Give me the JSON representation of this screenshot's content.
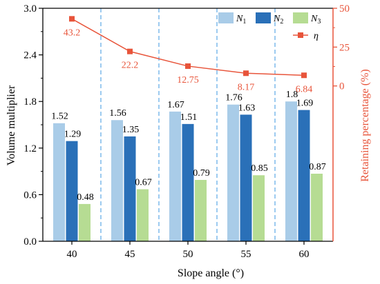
{
  "chart_data": {
    "type": "bar",
    "categories": [
      "40",
      "45",
      "50",
      "55",
      "60"
    ],
    "xlabel": "Slope angle (°)",
    "ylabel": "Volume multiplier",
    "ylim": [
      0,
      3.0
    ],
    "yticks": [
      "0.0",
      "0.6",
      "1.2",
      "1.8",
      "2.4",
      "3.0"
    ],
    "y2label": "Retaining percentage (%)",
    "y2lim": [
      -100,
      50
    ],
    "y2ticks": [
      "0",
      "25",
      "50"
    ],
    "y2_ticks_values": [
      0,
      25,
      50
    ],
    "series": [
      {
        "name": "N",
        "sub": "1",
        "color": "#a9cce8",
        "values": [
          1.52,
          1.56,
          1.67,
          1.76,
          1.8
        ],
        "labels": [
          "1.52",
          "1.56",
          "1.67",
          "1.76",
          "1.8"
        ]
      },
      {
        "name": "N",
        "sub": "2",
        "color": "#2a70b8",
        "values": [
          1.29,
          1.35,
          1.51,
          1.63,
          1.69
        ],
        "labels": [
          "1.29",
          "1.35",
          "1.51",
          "1.63",
          "1.69"
        ]
      },
      {
        "name": "N",
        "sub": "3",
        "color": "#b6dc93",
        "values": [
          0.48,
          0.67,
          0.79,
          0.85,
          0.87
        ],
        "labels": [
          "0.48",
          "0.67",
          "0.79",
          "0.85",
          "0.87"
        ]
      }
    ],
    "line_series": {
      "name": "η",
      "color": "#e8543a",
      "axis": "right",
      "values": [
        43.2,
        22.2,
        12.75,
        8.17,
        6.84
      ],
      "labels": [
        "43.2",
        "22.2",
        "12.75",
        "8.17",
        "6.84"
      ]
    },
    "grid": "vertical dashed separators between categories",
    "legend_position": "top-right"
  }
}
